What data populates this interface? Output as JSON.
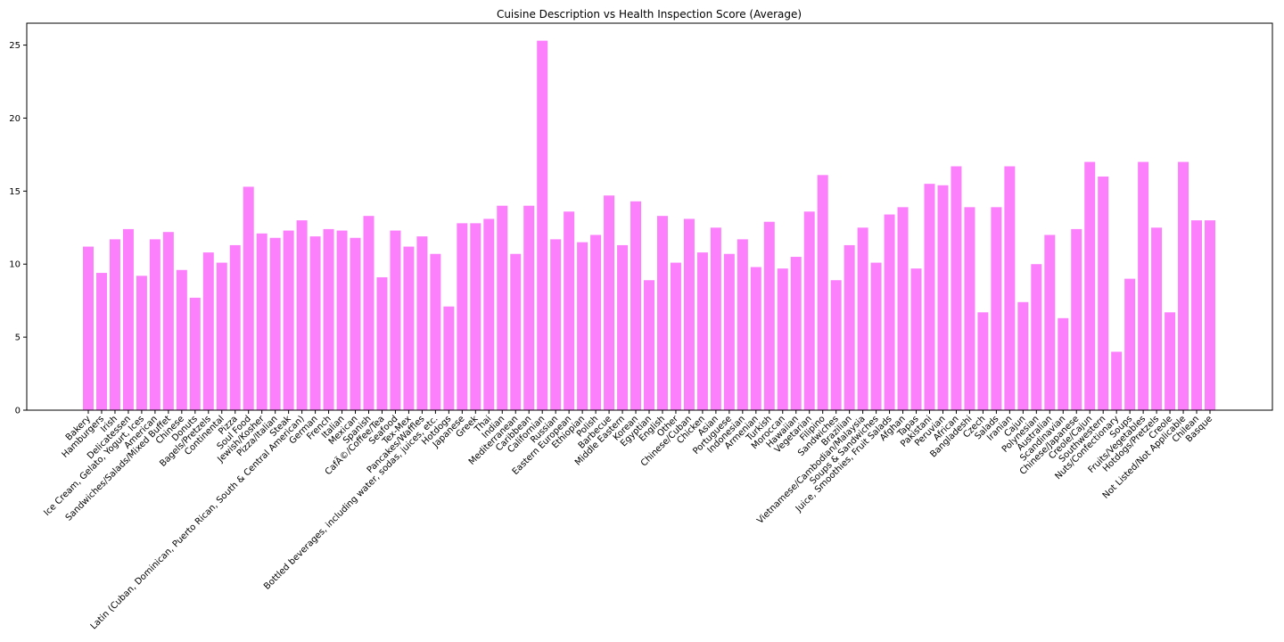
{
  "chart_data": {
    "type": "bar",
    "title": "Cuisine Description vs Health Inspection Score (Average)",
    "xlabel": "",
    "ylabel": "",
    "ylim": [
      0,
      26.5
    ],
    "yticks": [
      0,
      5,
      10,
      15,
      20,
      25
    ],
    "grid": false,
    "bar_color": "#fc80fc",
    "categories": [
      "Bakery",
      "Hamburgers",
      "Irish",
      "Delicatessen",
      "Ice Cream, Gelato, Yogurt, Ices",
      "American",
      "Sandwiches/Salads/Mixed Buffet",
      "Chinese",
      "Donuts",
      "Bagels/Pretzels",
      "Continental",
      "Pizza",
      "Soul Food",
      "Jewish/Kosher",
      "Pizza/Italian",
      "Steak",
      "Latin (Cuban, Dominican, Puerto Rican, South & Central American)",
      "German",
      "French",
      "Italian",
      "Mexican",
      "Spanish",
      "CafÃ©/Coffee/Tea",
      "Seafood",
      "Tex-Mex",
      "Pancakes/Waffles",
      "Bottled beverages, including water, sodas, juices, etc.",
      "Hotdogs",
      "Japanese",
      "Greek",
      "Thai",
      "Indian",
      "Mediterranean",
      "Caribbean",
      "Californian",
      "Russian",
      "Eastern European",
      "Ethiopian",
      "Polish",
      "Barbecue",
      "Middle Eastern",
      "Korean",
      "Egyptian",
      "English",
      "Other",
      "Chinese/Cuban",
      "Chicken",
      "Asian",
      "Portuguese",
      "Indonesian",
      "Armenian",
      "Turkish",
      "Moroccan",
      "Hawaiian",
      "Vegetarian",
      "Filipino",
      "Sandwiches",
      "Brazilian",
      "Vietnamese/Cambodian/Malaysia",
      "Soups & Sandwiches",
      "Juice, Smoothies, Fruit Salads",
      "Afghan",
      "Tapas",
      "Pakistani",
      "Peruvian",
      "African",
      "Bangladeshi",
      "Czech",
      "Salads",
      "Iranian",
      "Cajun",
      "Polynesian",
      "Australian",
      "Scandinavian",
      "Chinese/Japanese",
      "Creole/Cajun",
      "Southwestern",
      "Nuts/Confectionary",
      "Soups",
      "Fruits/Vegetables",
      "Hotdogs/Pretzels",
      "Creole",
      "Not Listed/Not Applicable",
      "Chilean",
      "Basque"
    ],
    "values": [
      11.2,
      9.4,
      11.7,
      12.4,
      9.2,
      11.7,
      12.2,
      9.6,
      7.7,
      10.8,
      10.1,
      11.3,
      15.3,
      12.1,
      11.8,
      12.3,
      13.0,
      11.9,
      12.4,
      12.3,
      11.8,
      13.3,
      9.1,
      12.3,
      11.2,
      11.9,
      10.7,
      7.1,
      12.8,
      12.8,
      13.1,
      14.0,
      10.7,
      14.0,
      25.3,
      11.7,
      13.6,
      11.5,
      12.0,
      14.7,
      11.3,
      14.3,
      8.9,
      13.3,
      10.1,
      13.1,
      10.8,
      12.5,
      10.7,
      11.7,
      9.8,
      12.9,
      9.7,
      10.5,
      13.6,
      16.1,
      8.9,
      11.3,
      12.5,
      10.1,
      13.4,
      13.9,
      9.7,
      15.5,
      15.4,
      16.7,
      13.9,
      6.7,
      13.9,
      16.7,
      7.4,
      10.0,
      12.0,
      6.3,
      12.4,
      17.0,
      16.0,
      4.0,
      9.0,
      17.0,
      12.5,
      6.7,
      17.0,
      13.0,
      13.0
    ]
  }
}
